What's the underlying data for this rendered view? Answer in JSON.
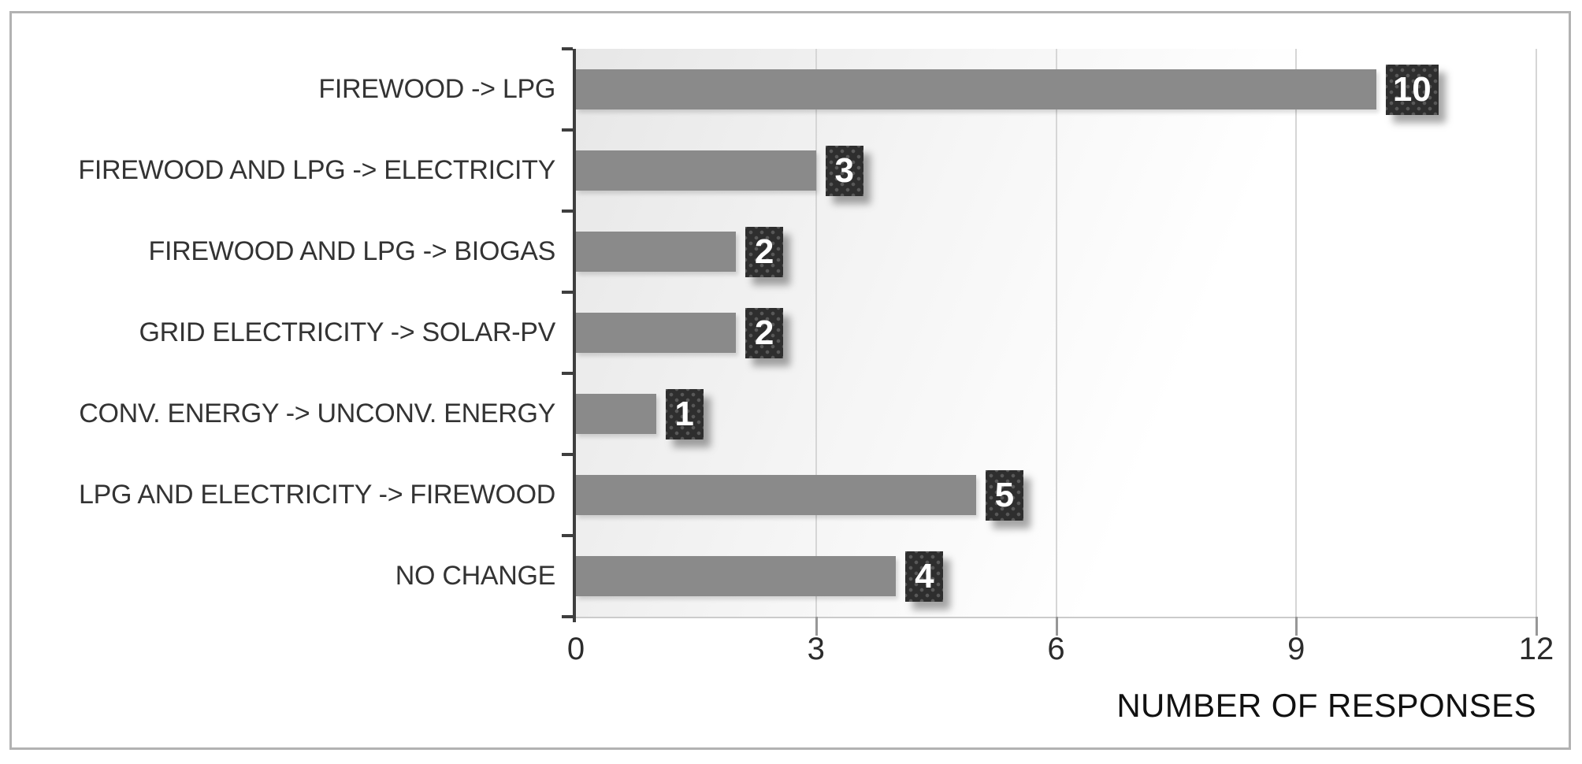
{
  "chart_data": {
    "type": "bar",
    "orientation": "horizontal",
    "title": "",
    "categories": [
      "FIREWOOD -> LPG",
      "FIREWOOD AND LPG -> ELECTRICITY",
      "FIREWOOD AND LPG -> BIOGAS",
      "GRID ELECTRICITY -> SOLAR-PV",
      "CONV. ENERGY -> UNCONV. ENERGY",
      "LPG AND ELECTRICITY -> FIREWOOD",
      "NO CHANGE"
    ],
    "values": [
      10,
      3,
      2,
      2,
      1,
      5,
      4
    ],
    "value_labels": [
      "10",
      "3",
      "2",
      "2",
      "1",
      "5",
      "4"
    ],
    "xlabel": "NUMBER OF RESPONSES",
    "ylabel": "",
    "xlim": [
      0,
      12
    ],
    "xticks": [
      0,
      3,
      6,
      9,
      12
    ],
    "grid": "vertical-gridlines-on",
    "legend": "none",
    "colors": {
      "bar": "#8a8a8a",
      "value_badge_background": "#2e2e2e",
      "value_badge_text": "#ffffff",
      "axis_line": "#3e3e3e",
      "gridline": "#d6d6d6",
      "frame_border": "#b2b2b2"
    }
  }
}
